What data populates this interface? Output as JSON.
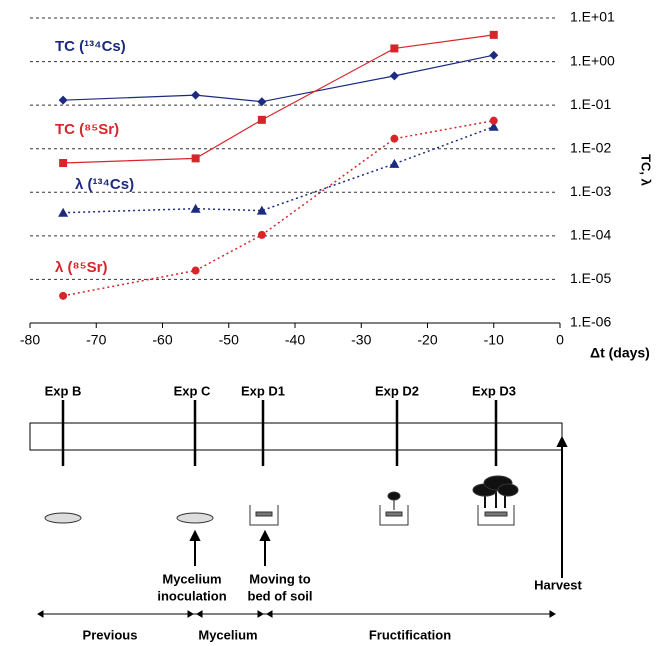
{
  "chart_data": {
    "type": "line",
    "x_label": "Δt (days)",
    "y_label": "TC, λ",
    "x": [
      -75,
      -55,
      -45,
      -25,
      -10
    ],
    "xlim": [
      -80,
      0
    ],
    "xticks": [
      -80,
      -70,
      -60,
      -50,
      -40,
      -30,
      -20,
      -10,
      0
    ],
    "ylim": [
      1e-06,
      10
    ],
    "y_scale": "log",
    "yticks": [
      {
        "value": 10,
        "label": "1.E+01"
      },
      {
        "value": 1,
        "label": "1.E+00"
      },
      {
        "value": 0.1,
        "label": "1.E-01"
      },
      {
        "value": 0.01,
        "label": "1.E-02"
      },
      {
        "value": 0.001,
        "label": "1.E-03"
      },
      {
        "value": 0.0001,
        "label": "1.E-04"
      },
      {
        "value": 1e-05,
        "label": "1.E-05"
      },
      {
        "value": 1e-06,
        "label": "1.E-06"
      }
    ],
    "grid": true,
    "series": [
      {
        "name": "TC (¹³⁴Cs)",
        "color": "#1c2a80",
        "marker": "diamond",
        "line_style": "solid",
        "values": [
          0.13,
          0.17,
          0.12,
          0.47,
          1.4
        ]
      },
      {
        "name": "TC (⁸⁵Sr)",
        "color": "#d8252b",
        "marker": "square",
        "line_style": "solid",
        "values": [
          0.0047,
          0.006,
          0.046,
          2.0,
          4.1
        ]
      },
      {
        "name": "λ (¹³⁴Cs)",
        "color": "#1c2a80",
        "marker": "triangle",
        "line_style": "dotted",
        "values": [
          0.00034,
          0.00042,
          0.00038,
          0.0045,
          0.032
        ]
      },
      {
        "name": "λ (⁸⁵Sr)",
        "color": "#d8252b",
        "marker": "circle",
        "line_style": "dotted",
        "values": [
          4.2e-06,
          1.6e-05,
          0.000105,
          0.017,
          0.044
        ]
      }
    ]
  },
  "timeline": {
    "experiments": [
      "Exp B",
      "Exp C",
      "Exp D1",
      "Exp D2",
      "Exp D3"
    ],
    "steps": [
      [
        "Mycelium",
        "inoculation"
      ],
      [
        "Moving to",
        "bed of soil"
      ],
      [
        "Harvest"
      ]
    ],
    "phases": [
      "Previous",
      "Mycelium",
      "Fructification"
    ]
  }
}
